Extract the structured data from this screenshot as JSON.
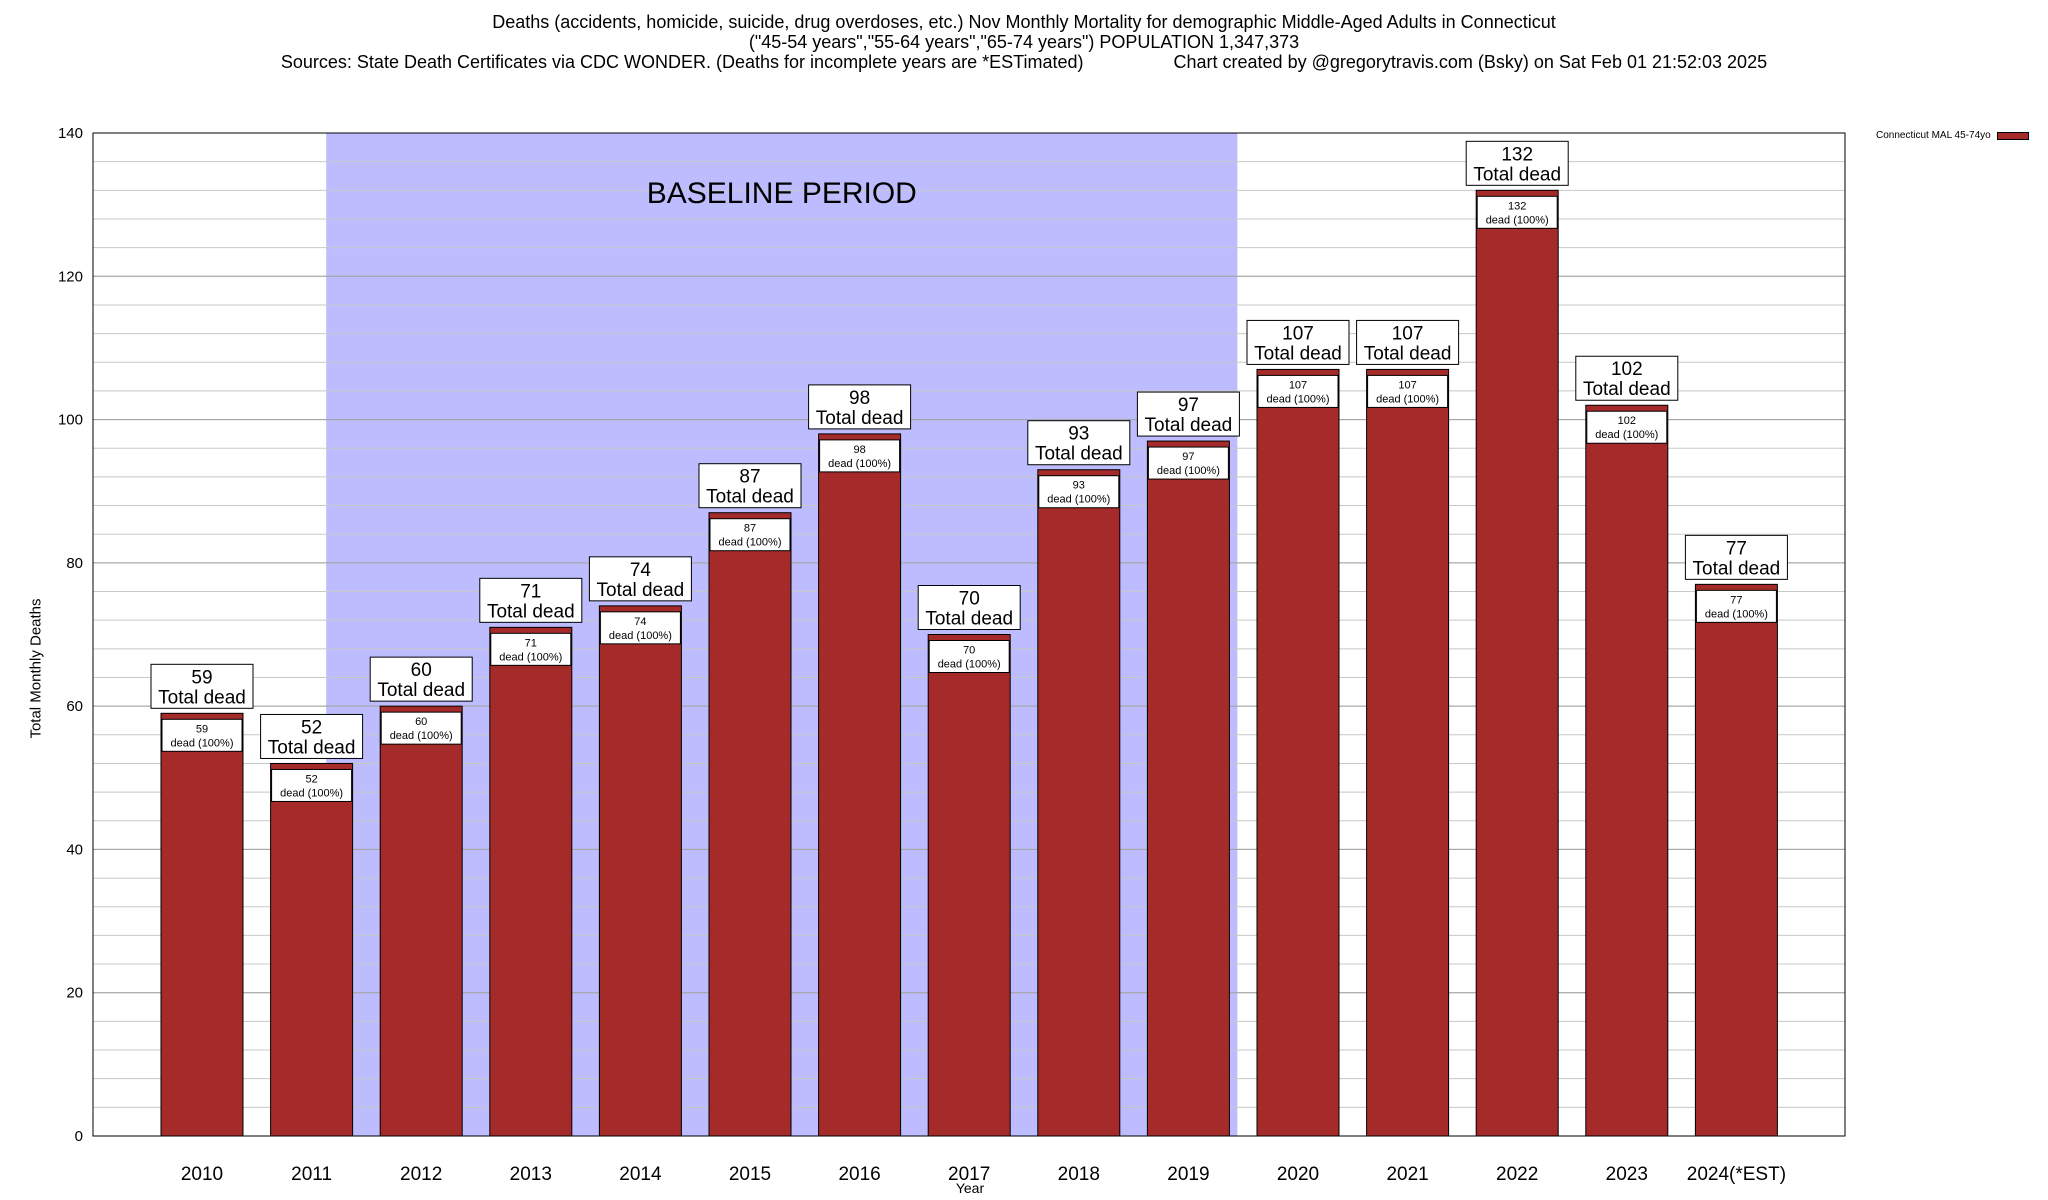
{
  "chart_data": {
    "type": "bar",
    "title_lines": [
      "Deaths (accidents, homicide, suicide, drug overdoses, etc.) Nov Monthly Mortality for demographic Middle-Aged Adults in Connecticut",
      "(\"45-54 years\",\"55-64 years\",\"65-74 years\") POPULATION 1,347,373",
      "Sources: State Death Certificates via CDC WONDER. (Deaths for incomplete years are *ESTimated)                  Chart created by @gregorytravis.com (Bsky) on Sat Feb 01 21:52:03 2025"
    ],
    "xlabel": "Year",
    "ylabel": "Total Monthly Deaths",
    "ylim": [
      0,
      140
    ],
    "yticks": [
      0,
      20,
      40,
      60,
      80,
      100,
      120,
      140
    ],
    "grid": true,
    "legend_position": "top-right",
    "categories": [
      "2010",
      "2011",
      "2012",
      "2013",
      "2014",
      "2015",
      "2016",
      "2017",
      "2018",
      "2019",
      "2020",
      "2021",
      "2022",
      "2023",
      "2024(*EST)"
    ],
    "series": [
      {
        "name": "Connecticut MAL 45-74yo",
        "values": [
          59,
          52,
          60,
          71,
          74,
          87,
          98,
          70,
          93,
          97,
          107,
          107,
          132,
          102,
          77
        ],
        "color": "#a52a2a"
      }
    ],
    "top_label_text": "Total dead",
    "inner_label_text": "dead (100%)",
    "shaded_region": {
      "label": "BASELINE PERIOD",
      "from": "2012",
      "to": "2019",
      "color": "#bcbcff"
    }
  }
}
